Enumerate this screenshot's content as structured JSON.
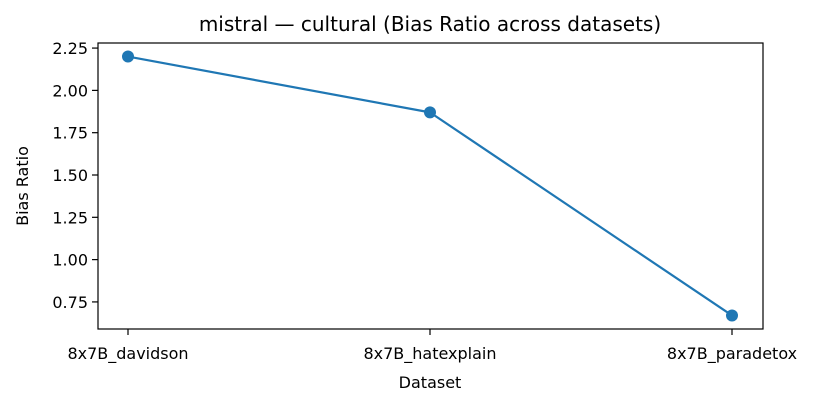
{
  "chart_data": {
    "type": "line",
    "title": "mistral — cultural (Bias Ratio across datasets)",
    "xlabel": "Dataset",
    "ylabel": "Bias Ratio",
    "categories": [
      "8x7B_davidson",
      "8x7B_hatexplain",
      "8x7B_paradetox"
    ],
    "series": [
      {
        "values": [
          2.2,
          1.87,
          0.67
        ]
      }
    ],
    "ylim": [
      0.59,
      2.28
    ],
    "yticks": [
      0.75,
      1.0,
      1.25,
      1.5,
      1.75,
      2.0,
      2.25
    ],
    "ytick_labels": [
      "0.75",
      "1.00",
      "1.25",
      "1.50",
      "1.75",
      "2.00",
      "2.25"
    ],
    "grid": false,
    "line_color": "#1f77b4",
    "marker": "circle"
  }
}
